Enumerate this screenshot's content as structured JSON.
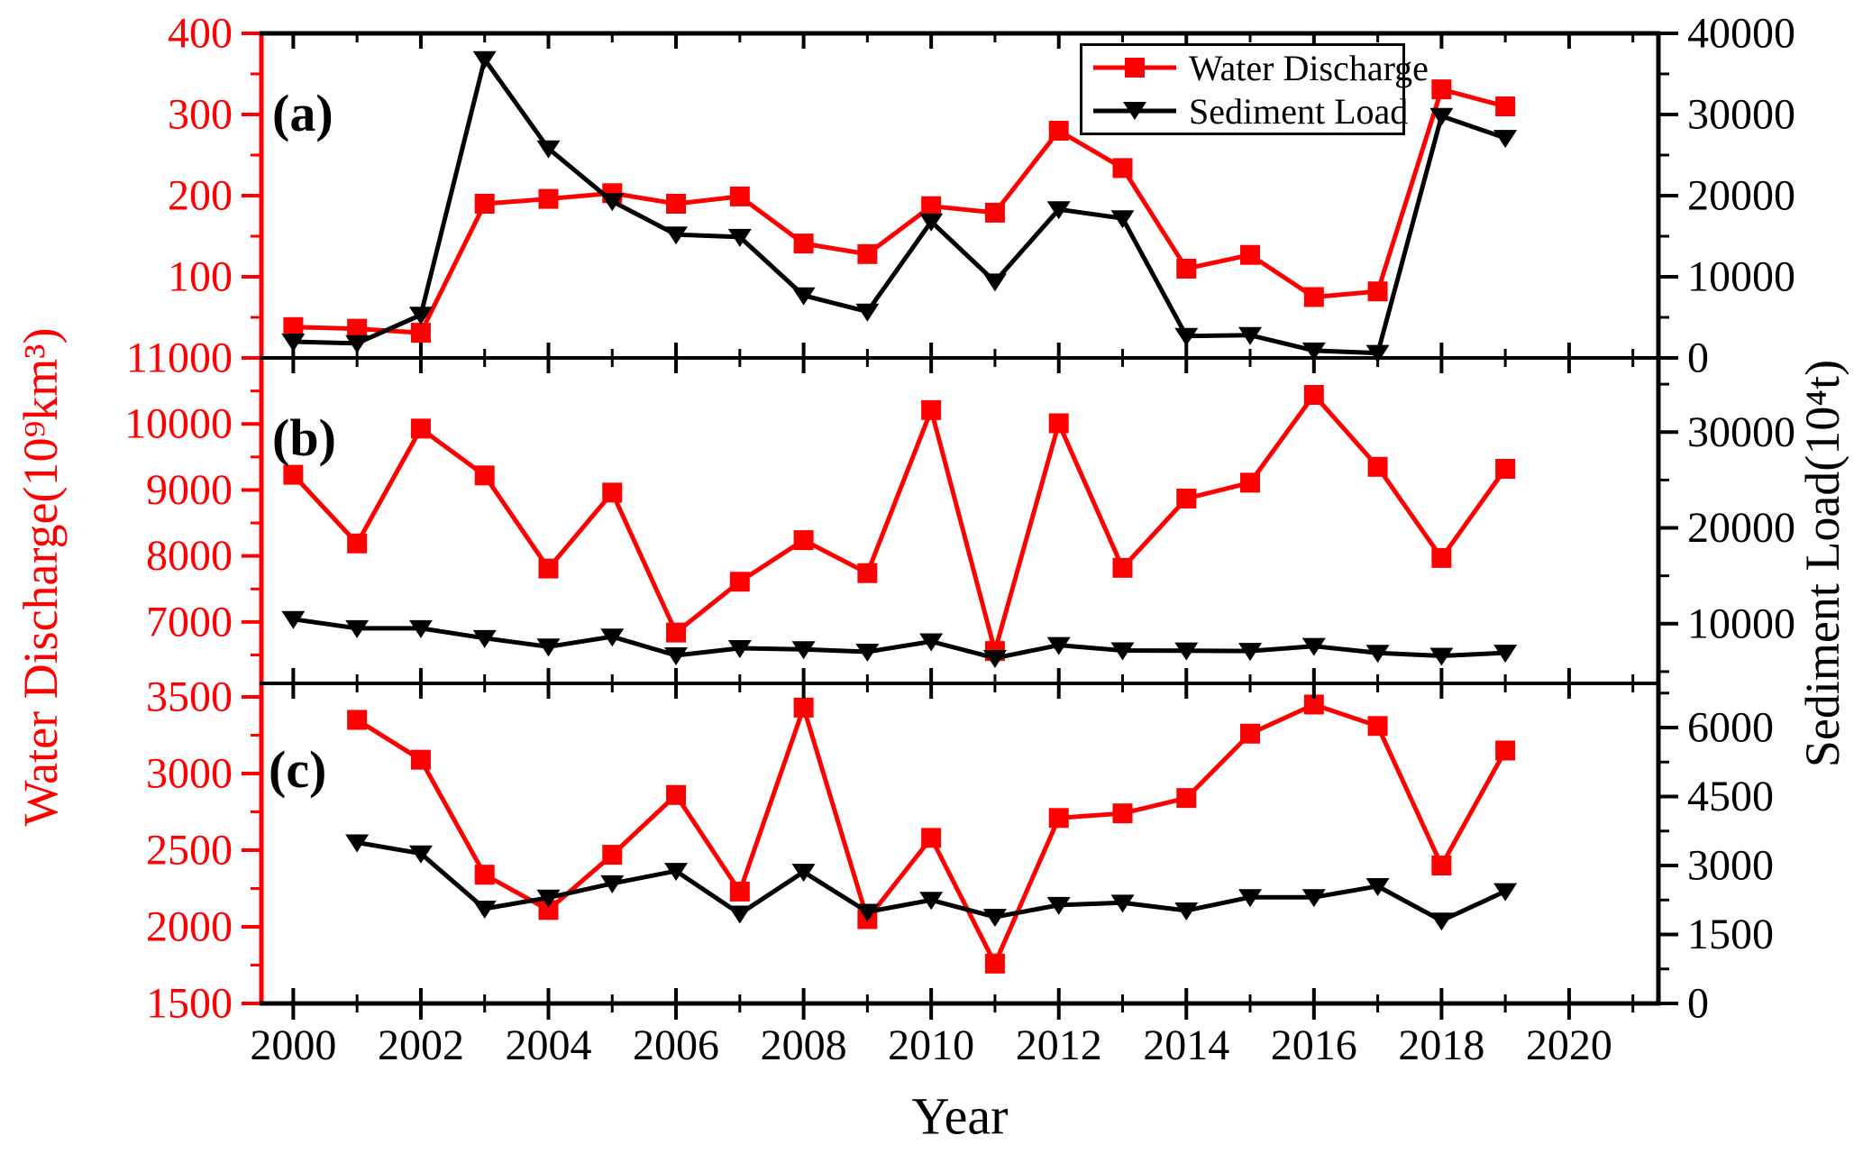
{
  "figure": {
    "xlabel": "Year",
    "left_axis_title": "Water Discharge(10⁹km³)",
    "right_axis_title": "Sediment Load(10⁴t)",
    "background": "#ffffff",
    "colors": {
      "water_discharge": "#ff0000",
      "sediment_load": "#000000"
    },
    "legend": [
      {
        "label": "Water Discharge",
        "color": "#ff0000",
        "marker": "square"
      },
      {
        "label": "Sediment Load",
        "color": "#000000",
        "marker": "triangle-down"
      }
    ]
  },
  "chart_data": {
    "type": "line",
    "x_axis": {
      "label": "Year",
      "range": [
        1999.5,
        2021.4
      ],
      "major_years": [
        2000,
        2002,
        2004,
        2006,
        2008,
        2010,
        2012,
        2014,
        2016,
        2018,
        2020
      ],
      "minor_years": [
        2001,
        2003,
        2005,
        2007,
        2009,
        2011,
        2013,
        2015,
        2017,
        2019,
        2021
      ],
      "tick_labels": [
        "2000",
        "2002",
        "2004",
        "2006",
        "2008",
        "2010",
        "2012",
        "2014",
        "2016",
        "2018",
        "2020"
      ]
    },
    "panels": [
      {
        "id": "a",
        "label": "(a)",
        "left_axis": {
          "color": "#ff0000",
          "range": [
            0,
            400
          ],
          "major": [
            100,
            200,
            300,
            400
          ],
          "minor": [
            50,
            150,
            250,
            350
          ]
        },
        "right_axis": {
          "color": "#000000",
          "range": [
            0,
            40000
          ],
          "major": [
            0,
            10000,
            20000,
            30000,
            40000
          ],
          "minor": [
            5000,
            15000,
            25000,
            35000
          ]
        },
        "series": [
          {
            "name": "Water Discharge",
            "axis": "left",
            "color": "#ff0000",
            "marker": "square",
            "years": [
              2000,
              2001,
              2002,
              2003,
              2004,
              2005,
              2006,
              2007,
              2008,
              2009,
              2010,
              2011,
              2012,
              2013,
              2014,
              2015,
              2016,
              2017,
              2018,
              2019
            ],
            "values": [
              38,
              36,
              31,
              190,
              196,
              203,
              190,
              199,
              141,
              128,
              187,
              179,
              280,
              234,
              110,
              127,
              75,
              82,
              331,
              310
            ]
          },
          {
            "name": "Sediment Load",
            "axis": "right",
            "color": "#000000",
            "marker": "triangle-down",
            "years": [
              2000,
              2001,
              2002,
              2003,
              2004,
              2005,
              2006,
              2007,
              2008,
              2009,
              2010,
              2011,
              2012,
              2013,
              2014,
              2015,
              2016,
              2017,
              2018,
              2019
            ],
            "values": [
              2000,
              1800,
              5300,
              36800,
              25800,
              19300,
              15200,
              14900,
              7700,
              5700,
              16800,
              9400,
              18300,
              17200,
              2700,
              2800,
              900,
              600,
              29800,
              27100
            ]
          }
        ]
      },
      {
        "id": "b",
        "label": "(b)",
        "left_axis": {
          "color": "#ff0000",
          "range": [
            6070,
            11000
          ],
          "major": [
            7000,
            8000,
            9000,
            10000,
            11000
          ],
          "minor": [
            6500,
            7500,
            8500,
            9500,
            10500
          ]
        },
        "right_axis": {
          "color": "#000000",
          "range": [
            3770,
            37740
          ],
          "major": [
            10000,
            20000,
            30000
          ],
          "minor": [
            5000,
            15000,
            25000,
            35000
          ]
        },
        "series": [
          {
            "name": "Water Discharge",
            "axis": "left",
            "color": "#ff0000",
            "marker": "square",
            "years": [
              2000,
              2001,
              2002,
              2003,
              2004,
              2005,
              2006,
              2007,
              2008,
              2009,
              2010,
              2011,
              2012,
              2013,
              2014,
              2015,
              2016,
              2017,
              2018,
              2019
            ],
            "values": [
              9230,
              8190,
              9930,
              9220,
              7810,
              8960,
              6840,
              7610,
              8240,
              7740,
              10210,
              6560,
              10010,
              7820,
              8870,
              9110,
              10440,
              9350,
              7970,
              9320
            ]
          },
          {
            "name": "Sediment Load",
            "axis": "right",
            "color": "#000000",
            "marker": "triangle-down",
            "years": [
              2000,
              2001,
              2002,
              2003,
              2004,
              2005,
              2006,
              2007,
              2008,
              2009,
              2010,
              2011,
              2012,
              2013,
              2014,
              2015,
              2016,
              2017,
              2018,
              2019
            ],
            "values": [
              10470,
              9520,
              9520,
              8490,
              7600,
              8640,
              6690,
              7440,
              7320,
              7060,
              8150,
              6410,
              7760,
              7200,
              7190,
              7150,
              7660,
              6950,
              6640,
              6960
            ]
          }
        ]
      },
      {
        "id": "c",
        "label": "(c)",
        "left_axis": {
          "color": "#ff0000",
          "range": [
            1500,
            3588
          ],
          "major": [
            1500,
            2000,
            2500,
            3000,
            3500
          ],
          "minor": [
            1750,
            2250,
            2750,
            3250
          ]
        },
        "right_axis": {
          "color": "#000000",
          "range": [
            0,
            6961
          ],
          "major": [
            0,
            1500,
            3000,
            4500,
            6000
          ],
          "minor": [
            750,
            2250,
            3750,
            5250,
            6750
          ]
        },
        "series": [
          {
            "name": "Water Discharge",
            "axis": "left",
            "color": "#ff0000",
            "marker": "square",
            "years": [
              2001,
              2002,
              2003,
              2004,
              2005,
              2006,
              2007,
              2008,
              2009,
              2010,
              2011,
              2012,
              2013,
              2014,
              2015,
              2016,
              2017,
              2018,
              2019
            ],
            "values": [
              3350,
              3090,
              2340,
              2110,
              2470,
              2860,
              2230,
              3430,
              2050,
              2580,
              1760,
              2710,
              2740,
              2840,
              3260,
              3450,
              3310,
              2400,
              3150
            ]
          },
          {
            "name": "Sediment Load",
            "axis": "right",
            "color": "#000000",
            "marker": "triangle-down",
            "years": [
              2001,
              2002,
              2003,
              2004,
              2005,
              2006,
              2007,
              2008,
              2009,
              2010,
              2011,
              2012,
              2013,
              2014,
              2015,
              2016,
              2017,
              2018,
              2019
            ],
            "values": [
              3500,
              3260,
              2060,
              2300,
              2610,
              2880,
              1950,
              2860,
              1990,
              2250,
              1880,
              2140,
              2190,
              2020,
              2310,
              2310,
              2550,
              1800,
              2440
            ]
          }
        ]
      }
    ]
  }
}
